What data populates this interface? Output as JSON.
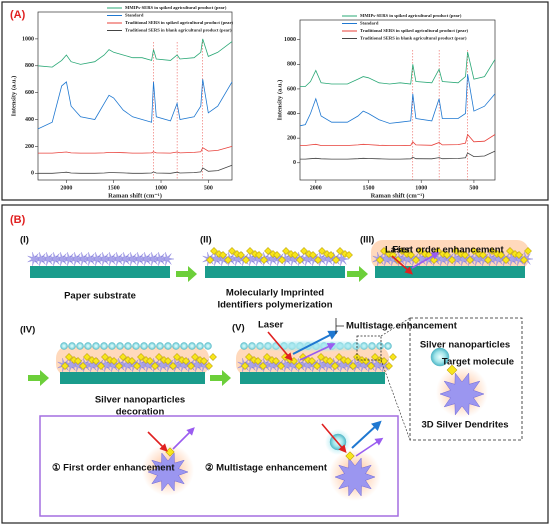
{
  "chart_data": [
    {
      "type": "line",
      "xlabel": "Raman shift (cm⁻¹)",
      "ylabel": "Intensity (a.u.)",
      "xlim": [
        2300,
        250
      ],
      "ylim": [
        -50,
        1200
      ],
      "xticks": [
        2000,
        1500,
        1000,
        500
      ],
      "yticks": [
        0,
        200,
        400,
        600,
        800,
        1000
      ],
      "reference_lines": [
        1080,
        830,
        560
      ],
      "x": [
        2300,
        2150,
        2050,
        2000,
        1950,
        1850,
        1700,
        1600,
        1550,
        1500,
        1400,
        1300,
        1200,
        1100,
        1080,
        1050,
        900,
        830,
        800,
        650,
        580,
        560,
        500,
        400,
        250
      ],
      "series": [
        {
          "name": "MMIPs-SERS in spiked agricultural product (pear)",
          "color": "#2aa876",
          "values": [
            800,
            790,
            840,
            880,
            830,
            810,
            830,
            880,
            920,
            900,
            880,
            860,
            860,
            840,
            920,
            850,
            840,
            880,
            850,
            860,
            900,
            1000,
            870,
            900,
            980
          ]
        },
        {
          "name": "Standard",
          "color": "#1f78d1",
          "values": [
            330,
            380,
            650,
            680,
            500,
            420,
            400,
            520,
            580,
            560,
            470,
            420,
            400,
            380,
            680,
            420,
            390,
            520,
            400,
            420,
            500,
            700,
            450,
            500,
            680
          ]
        },
        {
          "name": "Traditional SERS in spiked agricultural product (pear)",
          "color": "#e8403a",
          "values": [
            150,
            150,
            155,
            158,
            152,
            150,
            150,
            152,
            155,
            155,
            153,
            150,
            150,
            152,
            160,
            152,
            150,
            158,
            152,
            155,
            160,
            190,
            165,
            170,
            200
          ]
        },
        {
          "name": "Traditional SERS in blank agricultural product (pear)",
          "color": "#444444",
          "values": [
            0,
            0,
            5,
            8,
            2,
            0,
            0,
            2,
            5,
            5,
            3,
            0,
            0,
            2,
            10,
            2,
            0,
            8,
            2,
            5,
            10,
            40,
            15,
            20,
            60
          ]
        }
      ]
    },
    {
      "type": "line",
      "xlabel": "Raman shift (cm⁻¹)",
      "ylabel": "Intensity (a.u.)",
      "xlim": [
        2150,
        300
      ],
      "ylim": [
        -140,
        1160
      ],
      "xticks": [
        2000,
        1500,
        1000,
        500
      ],
      "yticks": [
        0,
        200,
        400,
        600,
        800,
        1000
      ],
      "reference_lines": [
        1080,
        830,
        560
      ],
      "x": [
        2150,
        2100,
        2050,
        2000,
        1950,
        1850,
        1700,
        1600,
        1550,
        1500,
        1400,
        1300,
        1200,
        1100,
        1080,
        1050,
        900,
        830,
        800,
        650,
        580,
        560,
        500,
        400,
        300
      ],
      "series": [
        {
          "name": "MMIPs-SERS in spiked agricultural product (pear)",
          "color": "#2aa876",
          "values": [
            620,
            620,
            660,
            750,
            650,
            640,
            640,
            680,
            700,
            690,
            650,
            640,
            650,
            640,
            800,
            660,
            650,
            760,
            660,
            650,
            700,
            900,
            680,
            700,
            840
          ]
        },
        {
          "name": "Standard",
          "color": "#1f78d1",
          "values": [
            300,
            310,
            400,
            520,
            380,
            330,
            330,
            380,
            420,
            400,
            350,
            320,
            330,
            340,
            560,
            360,
            340,
            520,
            360,
            360,
            400,
            720,
            420,
            460,
            560
          ]
        },
        {
          "name": "Traditional SERS in spiked agricultural product (pear)",
          "color": "#e8403a",
          "values": [
            140,
            140,
            145,
            150,
            140,
            140,
            140,
            145,
            150,
            148,
            142,
            140,
            140,
            142,
            170,
            145,
            142,
            165,
            145,
            148,
            160,
            230,
            170,
            175,
            230
          ]
        },
        {
          "name": "Traditional SERS in blank agricultural product (pear)",
          "color": "#444444",
          "values": [
            30,
            30,
            33,
            36,
            32,
            30,
            30,
            33,
            36,
            35,
            32,
            30,
            30,
            32,
            45,
            33,
            32,
            42,
            33,
            35,
            40,
            80,
            50,
            55,
            95
          ]
        }
      ]
    }
  ],
  "panels": {
    "a": "(A)",
    "b": "(B)"
  },
  "diagram": {
    "steps": [
      "(I)",
      "(II)",
      "(III)",
      "(IV)",
      "(V)"
    ],
    "paper_substrate": "Paper substrate",
    "mip": [
      "Molecularly Imprinted",
      "Identifiers polymerization"
    ],
    "laser": "Laser",
    "first_order": "First order enhancement",
    "multistage": "Multistage enhancement",
    "silver_decoration": [
      "Silver nanoparticles",
      "decoration"
    ],
    "silver_nanoparticles": "Silver nanoparticles",
    "target_molecule": "Target molecule",
    "dendrites": "3D Silver Dendrites",
    "legend_first": "① First order enhancement",
    "legend_multi": "② Multistage enhancement"
  }
}
